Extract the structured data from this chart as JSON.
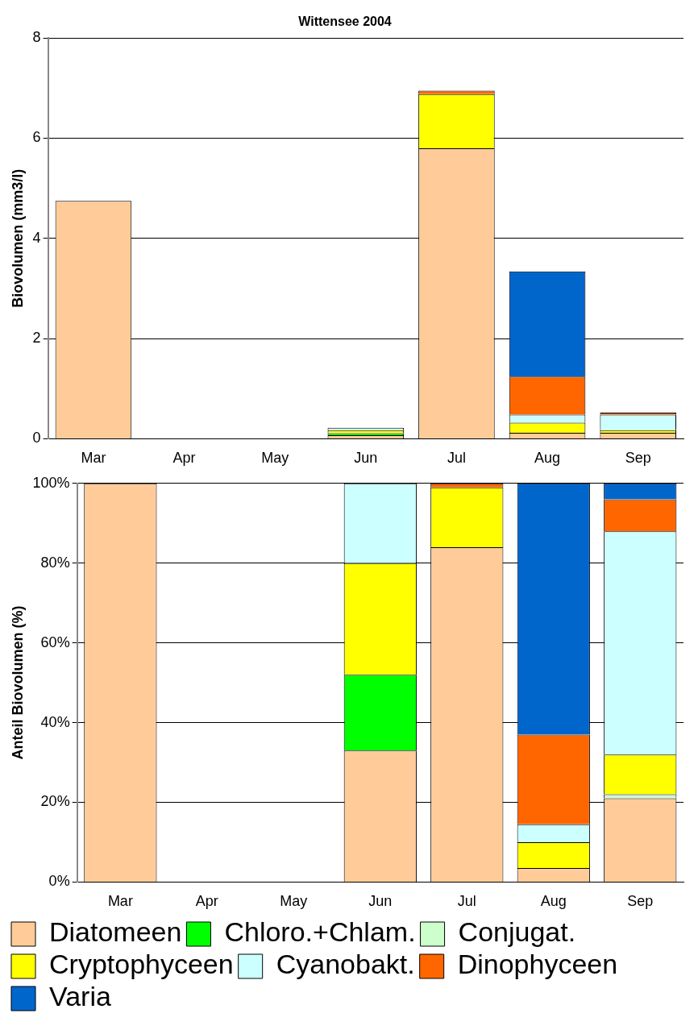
{
  "chart_data": [
    {
      "type": "bar",
      "title": "Wittensee 2004",
      "ylabel": "Biovolumen (mm3/l)",
      "categories": [
        "Mar",
        "Apr",
        "May",
        "Jun",
        "Jul",
        "Aug",
        "Sep"
      ],
      "stacked": true,
      "ylim": [
        0,
        8
      ],
      "yticks": [
        0,
        2,
        4,
        6,
        8
      ],
      "grid": "y",
      "legend": false,
      "series": [
        {
          "color": "#ffcc99",
          "values": [
            4.75,
            null,
            null,
            0.07,
            5.8,
            0.12,
            0.12
          ]
        },
        {
          "color": "#00ff00",
          "values": [
            null,
            null,
            null,
            0.04,
            null,
            null,
            null
          ]
        },
        {
          "color": "#ccffcc",
          "values": [
            null,
            null,
            null,
            null,
            null,
            null,
            null
          ]
        },
        {
          "color": "#ffff00",
          "values": [
            null,
            null,
            null,
            0.06,
            1.08,
            0.2,
            0.05
          ]
        },
        {
          "color": "#ccffff",
          "values": [
            null,
            null,
            null,
            0.05,
            null,
            0.16,
            0.31
          ]
        },
        {
          "color": "#ff6600",
          "values": [
            null,
            null,
            null,
            null,
            0.07,
            0.76,
            0.04
          ]
        },
        {
          "color": "#0066cc",
          "values": [
            null,
            null,
            null,
            null,
            null,
            2.1,
            null
          ]
        }
      ]
    },
    {
      "type": "bar",
      "ylabel": "Anteil Biovolumen (%)",
      "categories": [
        "Mar",
        "Apr",
        "May",
        "Jun",
        "Jul",
        "Aug",
        "Sep"
      ],
      "stacked": true,
      "ylim": [
        0,
        100
      ],
      "yticks": [
        {
          "value": 0,
          "label": "0%"
        },
        {
          "value": 20,
          "label": "20%"
        },
        {
          "value": 40,
          "label": "40%"
        },
        {
          "value": 60,
          "label": "60%"
        },
        {
          "value": 80,
          "label": "80%"
        },
        {
          "value": 100,
          "label": "100%"
        }
      ],
      "grid": "y",
      "legend": "bottom",
      "series": [
        {
          "name": "Diatomeen",
          "color": "#ffcc99",
          "values": [
            100,
            null,
            null,
            33,
            84,
            3.5,
            21
          ]
        },
        {
          "name": "Chloro.+Chlam.",
          "color": "#00ff00",
          "values": [
            null,
            null,
            null,
            19,
            null,
            null,
            null
          ]
        },
        {
          "name": "Conjugat.",
          "color": "#ccffcc",
          "values": [
            null,
            null,
            null,
            null,
            null,
            null,
            1
          ]
        },
        {
          "name": "Cryptophyceen",
          "color": "#ffff00",
          "values": [
            null,
            null,
            null,
            28,
            15,
            6.5,
            10
          ]
        },
        {
          "name": "Cyanobakt.",
          "color": "#ccffff",
          "values": [
            null,
            null,
            null,
            20,
            null,
            4.5,
            56
          ]
        },
        {
          "name": "Dinophyceen",
          "color": "#ff6600",
          "values": [
            null,
            null,
            null,
            null,
            1,
            22.5,
            8
          ]
        },
        {
          "name": "Varia",
          "color": "#0066cc",
          "values": [
            null,
            null,
            null,
            null,
            null,
            63,
            4
          ]
        }
      ]
    }
  ]
}
